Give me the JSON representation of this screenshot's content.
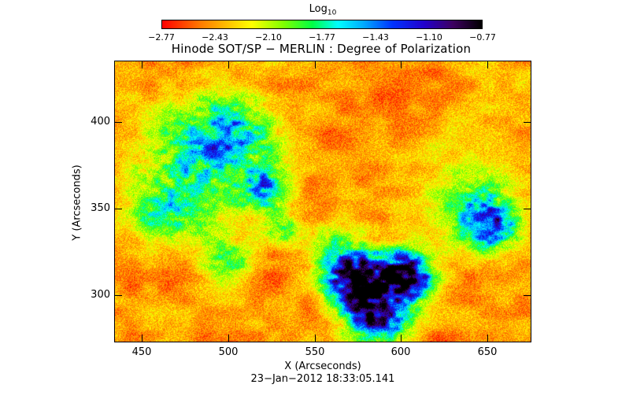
{
  "colorbar": {
    "title": "Log",
    "title_sub": "10",
    "ticks": [
      "−2.77",
      "−2.43",
      "−2.10",
      "−1.77",
      "−1.43",
      "−1.10",
      "−0.77"
    ]
  },
  "plot": {
    "title": "Hinode SOT/SP − MERLIN : Degree of Polarization",
    "xlabel": "X (Arcseconds)",
    "ylabel": "Y (Arcseconds)",
    "xticks": [
      "450",
      "500",
      "550",
      "600",
      "650"
    ],
    "yticks": [
      "400",
      "350",
      "300"
    ],
    "timestamp": "23−Jan−2012 18:33:05.141"
  }
}
